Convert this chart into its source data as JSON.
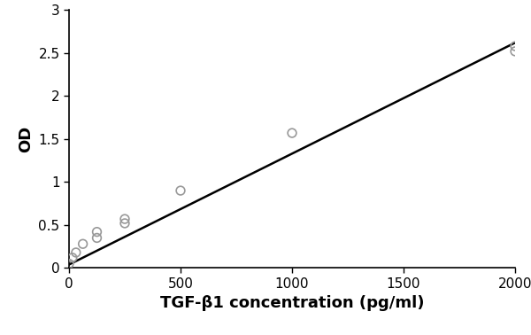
{
  "scatter_x": [
    0,
    15,
    31,
    62,
    125,
    125,
    250,
    250,
    500,
    1000,
    2000,
    2000
  ],
  "scatter_y": [
    0.05,
    0.12,
    0.18,
    0.28,
    0.35,
    0.42,
    0.52,
    0.57,
    0.9,
    1.57,
    2.52,
    2.58
  ],
  "line_x": [
    0,
    2000
  ],
  "line_y": [
    0.04,
    2.62
  ],
  "xlim": [
    0,
    2000
  ],
  "ylim": [
    0,
    3
  ],
  "xticks": [
    0,
    500,
    1000,
    1500,
    2000
  ],
  "yticks": [
    0,
    0.5,
    1.0,
    1.5,
    2.0,
    2.5,
    3.0
  ],
  "xlabel": "TGF-β1 concentration (pg/ml)",
  "ylabel": "OD",
  "marker_facecolor": "none",
  "marker_edge_color": "#999999",
  "line_color": "#000000",
  "background_color": "#ffffff",
  "marker_size": 7,
  "marker_linewidth": 1.2,
  "line_width": 1.8,
  "xlabel_fontsize": 13,
  "ylabel_fontsize": 13,
  "tick_fontsize": 11
}
